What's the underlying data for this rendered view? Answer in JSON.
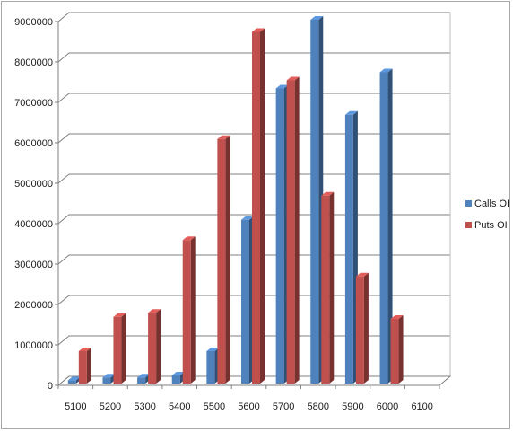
{
  "chart_data": {
    "type": "bar",
    "categories": [
      "5100",
      "5200",
      "5300",
      "5400",
      "5500",
      "5600",
      "5700",
      "5800",
      "5900",
      "6000",
      "6100"
    ],
    "series": [
      {
        "name": "Calls OI",
        "color": "#4f81bd",
        "values": [
          80000,
          150000,
          150000,
          200000,
          800000,
          4050000,
          7300000,
          9000000,
          6650000,
          7700000,
          null
        ]
      },
      {
        "name": "Puts OI",
        "color": "#c0504d",
        "values": [
          800000,
          1650000,
          1750000,
          3550000,
          6050000,
          8700000,
          7500000,
          4650000,
          2650000,
          1600000,
          null
        ]
      }
    ],
    "yticks": [
      "0",
      "1000000",
      "2000000",
      "3000000",
      "4000000",
      "5000000",
      "6000000",
      "7000000",
      "8000000",
      "9000000"
    ],
    "ylim": [
      0,
      9000000
    ],
    "grid": true,
    "legend": "right",
    "title": "",
    "xlabel": "",
    "ylabel": ""
  }
}
